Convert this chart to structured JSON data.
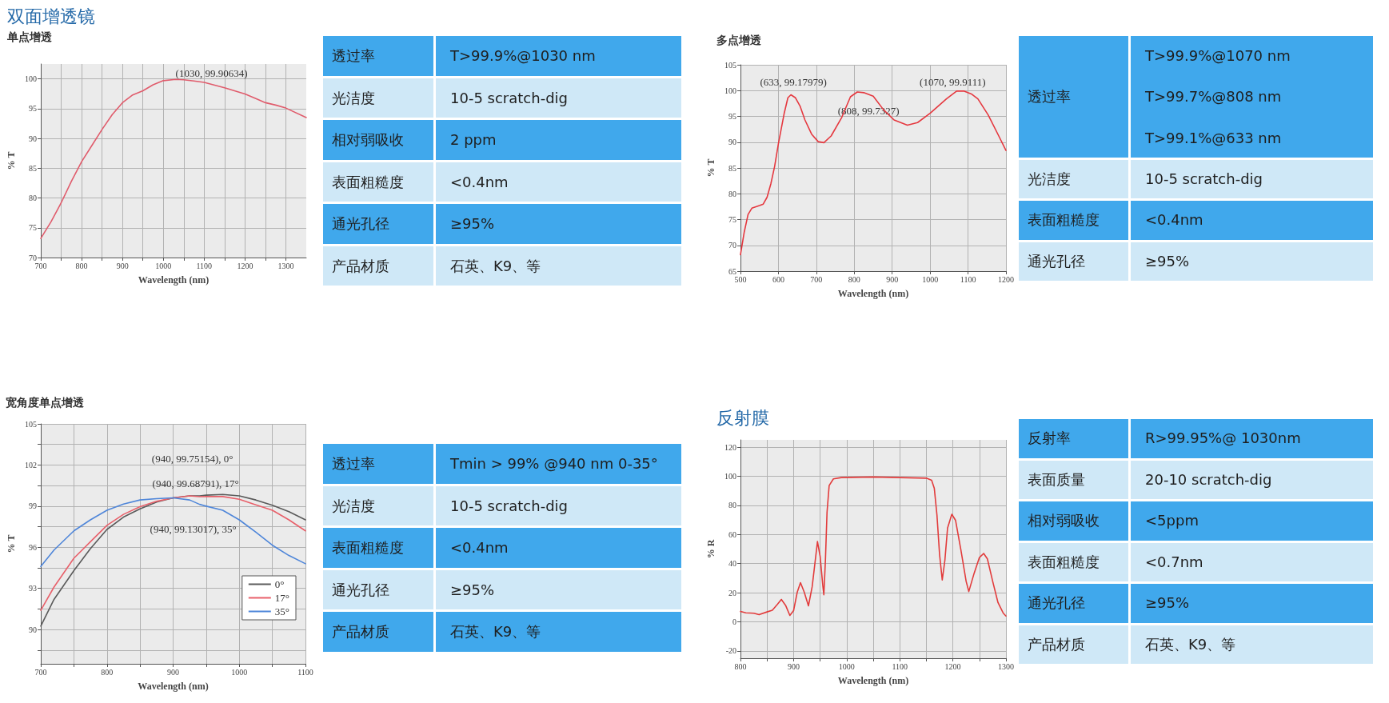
{
  "chart_data": [
    {
      "type": "line",
      "title": "双面增透镜",
      "subtitle": "单点增透",
      "xlabel": "Wavelength (nm)",
      "ylabel": "% T",
      "x": [
        700,
        725,
        750,
        775,
        800,
        825,
        850,
        875,
        900,
        925,
        950,
        975,
        1000,
        1030,
        1050,
        1075,
        1100,
        1150,
        1200,
        1230,
        1250,
        1275,
        1300,
        1350
      ],
      "series": [
        {
          "color": "#e05c6c",
          "values": [
            73.2,
            76.0,
            79.2,
            82.8,
            86.1,
            88.8,
            91.5,
            94.0,
            96.0,
            97.3,
            98.0,
            99.0,
            99.7,
            99.90634,
            99.85,
            99.65,
            99.4,
            98.5,
            97.45,
            96.6,
            96.0,
            95.6,
            95.1,
            93.5
          ]
        }
      ],
      "xlim": [
        700,
        1350
      ],
      "ylim": [
        70,
        102.5
      ],
      "xticks": [
        700,
        {
          "value": 750,
          "label": null
        },
        800,
        {
          "value": 850,
          "label": null
        },
        900,
        {
          "value": 950,
          "label": null
        },
        1000,
        {
          "value": 1050,
          "label": null
        },
        1100,
        {
          "value": 1150,
          "label": null
        },
        1200,
        {
          "value": 1250,
          "label": null
        },
        1300
      ],
      "yticks": [
        70,
        75,
        80,
        85,
        90,
        95,
        100
      ],
      "grid": true,
      "marker": "none",
      "annotations": [
        {
          "text": "(1030, 99.90634)",
          "x": 1030,
          "y": 99.90634
        }
      ]
    },
    {
      "type": "other",
      "cell_labels": [
        [
          "透过率",
          "T>99.9%@1030 nm"
        ],
        [
          "光洁度",
          "10-5 scratch-dig"
        ],
        [
          "相对弱吸收",
          "2 ppm"
        ],
        [
          "表面粗糙度",
          "<0.4nm"
        ],
        [
          "通光孔径",
          "≥95%"
        ],
        [
          "产品材质",
          "石英、K9、等"
        ]
      ]
    },
    {
      "type": "line",
      "subtitle": "多点增透",
      "xlabel": "Wavelength (nm)",
      "ylabel": "% T",
      "x": [
        500,
        510,
        520,
        530,
        550,
        560,
        570,
        580,
        590,
        600,
        615,
        625,
        633,
        645,
        657,
        670,
        688,
        705,
        720,
        739,
        767,
        790,
        808,
        825,
        850,
        877,
        905,
        940,
        967,
        1000,
        1043,
        1070,
        1090,
        1110,
        1126,
        1153,
        1181,
        1200
      ],
      "series": [
        {
          "color": "#e5383f",
          "values": [
            68.2,
            72.6,
            76.0,
            77.2,
            77.7,
            78.0,
            79.3,
            81.9,
            85.3,
            89.7,
            95.5,
            98.6,
            99.17979,
            98.6,
            97.0,
            94.3,
            91.5,
            90.1,
            89.9,
            91.2,
            94.8,
            98.8,
            99.7327,
            99.6,
            98.9,
            96.3,
            94.3,
            93.3,
            93.8,
            95.6,
            98.4,
            99.9111,
            99.9,
            99.3,
            98.4,
            95.3,
            91.2,
            88.4
          ]
        }
      ],
      "xlim": [
        500,
        1200
      ],
      "ylim": [
        65,
        105
      ],
      "xticks": [
        500,
        600,
        700,
        800,
        900,
        1000,
        1100,
        1200
      ],
      "yticks": [
        65,
        70,
        75,
        80,
        85,
        90,
        95,
        100,
        105
      ],
      "grid": true,
      "marker": "none",
      "annotations": [
        {
          "text": "(633, 99.17979)",
          "x": 633,
          "y": 99.17979
        },
        {
          "text": "(808, 99.7327)",
          "x": 808,
          "y": 99.7327
        },
        {
          "text": "(1070, 99.9111)",
          "x": 1070,
          "y": 99.9111
        }
      ]
    },
    {
      "type": "other",
      "cell_labels": [
        [
          "透过率",
          "T>99.9%@1070 nm\nT>99.7%@808 nm\nT>99.1%@633 nm"
        ],
        [
          "光洁度",
          "10-5 scratch-dig"
        ],
        [
          "表面粗糙度",
          "<0.4nm"
        ],
        [
          "通光孔径",
          "≥95%"
        ]
      ]
    },
    {
      "type": "line",
      "subtitle": "宽角度单点增透",
      "xlabel": "Wavelength (nm)",
      "ylabel": "% T",
      "x": [
        700,
        720,
        750,
        775,
        800,
        825,
        850,
        875,
        900,
        925,
        940,
        950,
        975,
        1000,
        1025,
        1050,
        1075,
        1100
      ],
      "series": [
        {
          "name": "0°",
          "color": "#5a5a5a",
          "values": [
            90.25,
            92.2,
            94.3,
            95.9,
            97.3,
            98.2,
            98.8,
            99.3,
            99.6,
            99.75,
            99.75154,
            99.8,
            99.85,
            99.75,
            99.45,
            99.06,
            98.6,
            98.0
          ]
        },
        {
          "name": "17°",
          "color": "#e8606a",
          "values": [
            91.4,
            93.1,
            95.2,
            96.4,
            97.6,
            98.4,
            98.96,
            99.35,
            99.6,
            99.75,
            99.68791,
            99.7,
            99.7,
            99.5,
            99.1,
            98.7,
            98.0,
            97.2
          ]
        },
        {
          "name": "35°",
          "color": "#4f86d9",
          "values": [
            94.6,
            95.8,
            97.2,
            98.0,
            98.7,
            99.15,
            99.45,
            99.55,
            99.6,
            99.45,
            99.13017,
            99.0,
            98.7,
            98.0,
            97.1,
            96.15,
            95.4,
            94.8
          ]
        }
      ],
      "xlim": [
        700,
        1100
      ],
      "ylim": [
        87.5,
        105
      ],
      "xticks": [
        700,
        {
          "value": 750,
          "label": null
        },
        800,
        {
          "value": 850,
          "label": null
        },
        900,
        {
          "value": 950,
          "label": null
        },
        1000,
        {
          "value": 1050,
          "label": null
        },
        1100
      ],
      "yticks": [
        {
          "value": 88.5,
          "label": null
        },
        90,
        {
          "value": 91.5,
          "label": null
        },
        93,
        {
          "value": 94.5,
          "label": null
        },
        96,
        {
          "value": 97.5,
          "label": null
        },
        99,
        {
          "value": 100.5,
          "label": null
        },
        102,
        {
          "value": 103.5,
          "label": null
        },
        105
      ],
      "grid": true,
      "legend": "bottom right",
      "marker": "none",
      "annotations": [
        {
          "text": "(940, 99.75154), 0°",
          "x": 940,
          "y": 99.75154
        },
        {
          "text": "(940, 99.68791), 17°",
          "x": 940,
          "y": 99.68791
        },
        {
          "text": "(940, 99.13017), 35°",
          "x": 940,
          "y": 99.13017
        }
      ]
    },
    {
      "type": "other",
      "cell_labels": [
        [
          "透过率",
          "Tmin > 99% @940 nm 0-35°"
        ],
        [
          "光洁度",
          "10-5 scratch-dig"
        ],
        [
          "表面粗糙度",
          "<0.4nm"
        ],
        [
          "通光孔径",
          "≥95%"
        ],
        [
          "产品材质",
          "石英、K9、等"
        ]
      ]
    },
    {
      "type": "line",
      "title": "反射膜",
      "xlabel": "Wavelength (nm)",
      "ylabel": "% R",
      "x": [
        800,
        810,
        825,
        835,
        850,
        860,
        870,
        877,
        885,
        893,
        900,
        907,
        913,
        920,
        928,
        935,
        945,
        950,
        955,
        957,
        960,
        963,
        967,
        975,
        990,
        1050,
        1100,
        1150,
        1160,
        1165,
        1170,
        1175,
        1180,
        1185,
        1190,
        1198,
        1205,
        1215,
        1225,
        1230,
        1240,
        1250,
        1258,
        1265,
        1275,
        1285,
        1295,
        1300
      ],
      "series": [
        {
          "color": "#e23b3b",
          "values": [
            7.1,
            6.2,
            5.9,
            4.9,
            6.8,
            8.0,
            12.2,
            15.4,
            11.3,
            4.4,
            7.7,
            20.5,
            26.9,
            20.5,
            11.0,
            24.1,
            55.2,
            45.0,
            25.0,
            18.6,
            42.4,
            75.3,
            93.6,
            98.2,
            99.1,
            99.5,
            99.1,
            98.7,
            97.3,
            91.8,
            73.5,
            46.1,
            28.7,
            42.4,
            64.4,
            73.9,
            69.8,
            49.7,
            27.8,
            20.8,
            33.3,
            44.2,
            47.0,
            43.3,
            27.8,
            13.2,
            5.9,
            4.0
          ]
        }
      ],
      "xlim": [
        800,
        1300
      ],
      "ylim": [
        -25,
        125
      ],
      "xticks": [
        800,
        {
          "value": 850,
          "label": null
        },
        900,
        {
          "value": 950,
          "label": null
        },
        1000,
        {
          "value": 1050,
          "label": null
        },
        1100,
        {
          "value": 1150,
          "label": null
        },
        1200,
        {
          "value": 1250,
          "label": null
        },
        1300
      ],
      "yticks": [
        -20,
        0,
        20,
        40,
        60,
        80,
        100,
        120
      ],
      "grid": true,
      "marker": "none"
    },
    {
      "type": "other",
      "cell_labels": [
        [
          "反射率",
          "R>99.95%@ 1030nm"
        ],
        [
          "表面质量",
          "20-10 scratch-dig"
        ],
        [
          "相对弱吸收",
          "<5ppm"
        ],
        [
          "表面粗糙度",
          "<0.7nm"
        ],
        [
          "通光孔径",
          "≥95%"
        ],
        [
          "产品材质",
          "石英、K9、等"
        ]
      ]
    }
  ]
}
